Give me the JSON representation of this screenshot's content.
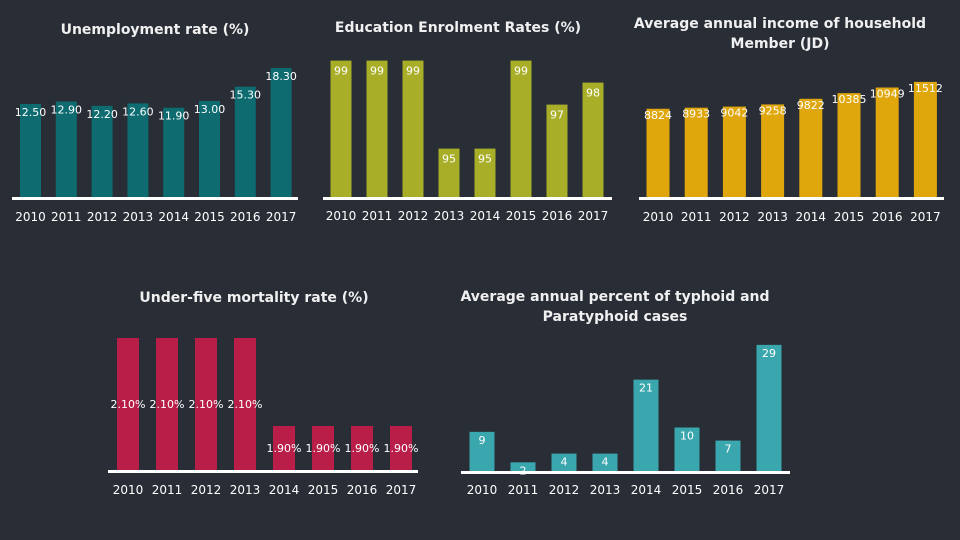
{
  "chart_data": [
    {
      "type": "bar",
      "title": "Unemployment rate (%)",
      "categories": [
        "2010",
        "2011",
        "2012",
        "2013",
        "2014",
        "2015",
        "2016",
        "2017"
      ],
      "values": [
        12.5,
        12.9,
        12.2,
        12.6,
        11.9,
        13.0,
        15.3,
        18.3
      ],
      "labels": [
        "12.50",
        "12.90",
        "12.20",
        "12.60",
        "11.90",
        "13.00",
        "15.30",
        "18.30"
      ],
      "ylim": [
        -2.5,
        20
      ],
      "color": "#0e6b70",
      "grid": false
    },
    {
      "type": "bar",
      "title": "Education Enrolment Rates (%)",
      "categories": [
        "2010",
        "2011",
        "2012",
        "2013",
        "2014",
        "2015",
        "2016",
        "2017"
      ],
      "values": [
        99,
        99,
        99,
        95,
        95,
        99,
        97,
        98
      ],
      "labels": [
        "99",
        "99",
        "99",
        "95",
        "95",
        "99",
        "97",
        "98"
      ],
      "ylim": [
        92.8,
        100
      ],
      "color": "#a9ae28",
      "grid": false
    },
    {
      "type": "bar",
      "title": "Average annual income of household",
      "title_line2": "Member (JD)",
      "categories": [
        "2010",
        "2011",
        "2012",
        "2013",
        "2014",
        "2015",
        "2016",
        "2017"
      ],
      "values": [
        8824,
        8933,
        9042,
        9258,
        9822,
        10385,
        10949,
        11512
      ],
      "labels": [
        "8824",
        "8933",
        "9042",
        "9258",
        "9822",
        "10385",
        "10949",
        "11512"
      ],
      "ylim": [
        0,
        12000
      ],
      "color": "#dfa70c",
      "grid": false
    },
    {
      "type": "bar",
      "title": "Under-five mortality rate (%)",
      "categories": [
        "2010",
        "2011",
        "2012",
        "2013",
        "2014",
        "2015",
        "2016",
        "2017"
      ],
      "values": [
        2.1,
        2.1,
        2.1,
        2.1,
        1.9,
        1.9,
        1.9,
        1.9
      ],
      "labels": [
        "2.10%",
        "2.10%",
        "2.10%",
        "2.10%",
        "1.90%",
        "1.90%",
        "1.90%",
        "1.90%"
      ],
      "ylim": [
        1.8,
        2.2
      ],
      "color": "#b81e48",
      "grid": false
    },
    {
      "type": "bar",
      "title": "Average annual percent of typhoid and",
      "title_line2": "Paratyphoid cases",
      "categories": [
        "2010",
        "2011",
        "2012",
        "2013",
        "2014",
        "2015",
        "2016",
        "2017"
      ],
      "values": [
        9,
        2,
        4,
        4,
        21,
        10,
        7,
        29
      ],
      "labels": [
        "9",
        "2",
        "4",
        "4",
        "21",
        "10",
        "7",
        "29"
      ],
      "ylim": [
        0,
        30
      ],
      "color": "#3aa6ad",
      "grid": false
    }
  ]
}
